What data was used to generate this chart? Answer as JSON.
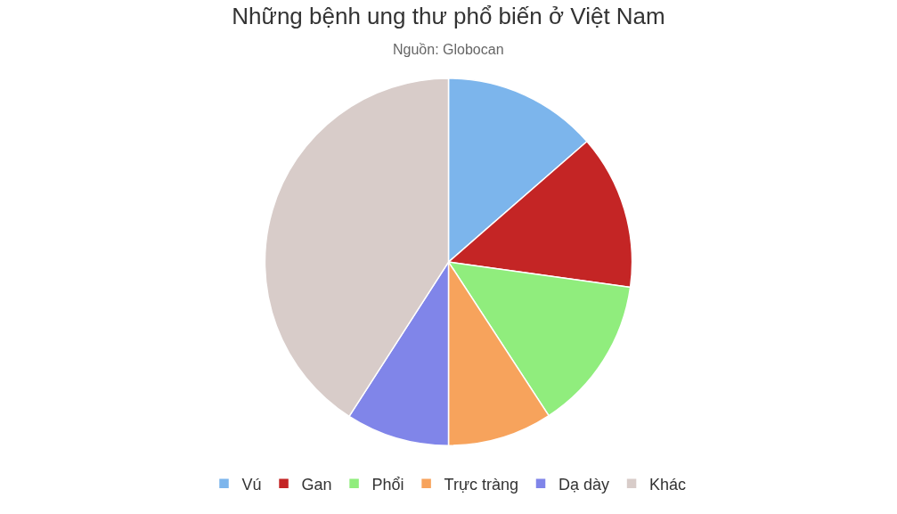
{
  "chart_data": {
    "type": "pie",
    "title": "Những bệnh ung thư phổ biến ở Việt Nam",
    "subtitle": "Nguồn: Globocan",
    "categories": [
      "Vú",
      "Gan",
      "Phổi",
      "Trực tràng",
      "Dạ dày",
      "Khác"
    ],
    "values": [
      13.6,
      13.6,
      13.6,
      9.2,
      9.1,
      40.9
    ],
    "colors": [
      "#7cb5ec",
      "#c42525",
      "#90ed7d",
      "#f7a35c",
      "#8085e9",
      "#d8ccc9"
    ],
    "legend": "bottom"
  }
}
